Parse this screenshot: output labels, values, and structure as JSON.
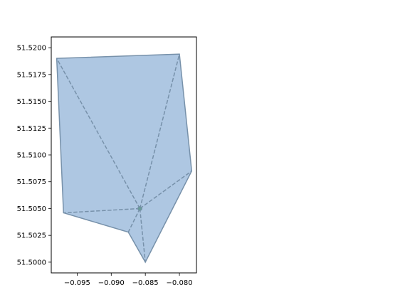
{
  "chart_data": {
    "type": "map-polygon",
    "title": "",
    "xlabel": "",
    "ylabel": "",
    "xlim": [
      -0.0988,
      -0.0775
    ],
    "ylim": [
      51.499,
      51.521
    ],
    "x_ticks": [
      {
        "value": -0.095,
        "label": "−0.095"
      },
      {
        "value": -0.09,
        "label": "−0.090"
      },
      {
        "value": -0.085,
        "label": "−0.085"
      },
      {
        "value": -0.08,
        "label": "−0.080"
      }
    ],
    "y_ticks": [
      {
        "value": 51.5,
        "label": "51.5000"
      },
      {
        "value": 51.5025,
        "label": "51.5025"
      },
      {
        "value": 51.505,
        "label": "51.5050"
      },
      {
        "value": 51.5075,
        "label": "51.5075"
      },
      {
        "value": 51.51,
        "label": "51.5100"
      },
      {
        "value": 51.5125,
        "label": "51.5125"
      },
      {
        "value": 51.515,
        "label": "51.5150"
      },
      {
        "value": 51.5175,
        "label": "51.5175"
      },
      {
        "value": 51.52,
        "label": "51.5200"
      }
    ],
    "polygon": [
      [
        -0.098,
        51.519
      ],
      [
        -0.08,
        51.5194
      ],
      [
        -0.0782,
        51.5085
      ],
      [
        -0.085,
        51.5
      ],
      [
        -0.0875,
        51.5028
      ],
      [
        -0.097,
        51.5046
      ]
    ],
    "center": [
      -0.0858,
      51.505
    ],
    "spokes_to": [
      [
        -0.098,
        51.519
      ],
      [
        -0.08,
        51.5194
      ],
      [
        -0.0782,
        51.5085
      ],
      [
        -0.085,
        51.5
      ],
      [
        -0.0875,
        51.5028
      ],
      [
        -0.097,
        51.5046
      ]
    ],
    "grid": false,
    "colors": {
      "fill": "#aec7e2",
      "edge": "#7791aa",
      "center": "#6a9a9a"
    }
  }
}
